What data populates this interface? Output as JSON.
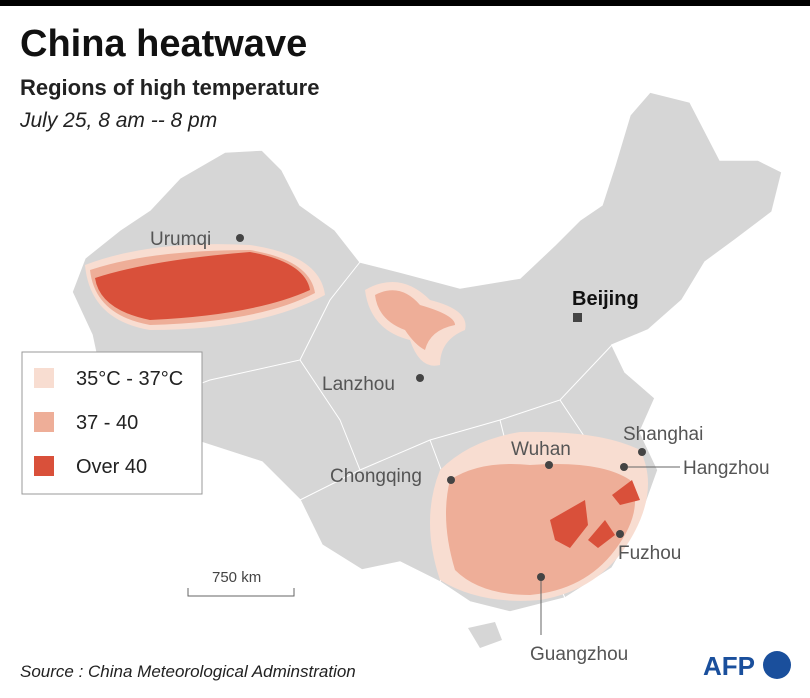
{
  "header": {
    "title": "China heatwave",
    "subtitle": "Regions of high temperature",
    "date": "July 25, 8 am -- 8 pm"
  },
  "legend": [
    {
      "label": "35°C - 37°C",
      "color": "#f8ddd1"
    },
    {
      "label": "37 - 40",
      "color": "#eeae98"
    },
    {
      "label": "Over 40",
      "color": "#d9503a"
    }
  ],
  "cities": [
    {
      "name": "Urumqi"
    },
    {
      "name": "Lanzhou"
    },
    {
      "name": "Beijing"
    },
    {
      "name": "Chongqing"
    },
    {
      "name": "Wuhan"
    },
    {
      "name": "Shanghai"
    },
    {
      "name": "Hangzhou"
    },
    {
      "name": "Fuzhou"
    },
    {
      "name": "Guangzhou"
    }
  ],
  "scale": {
    "label": "750 km"
  },
  "footer": {
    "source": "Source : China Meteorological Adminstration",
    "logo": "AFP"
  }
}
